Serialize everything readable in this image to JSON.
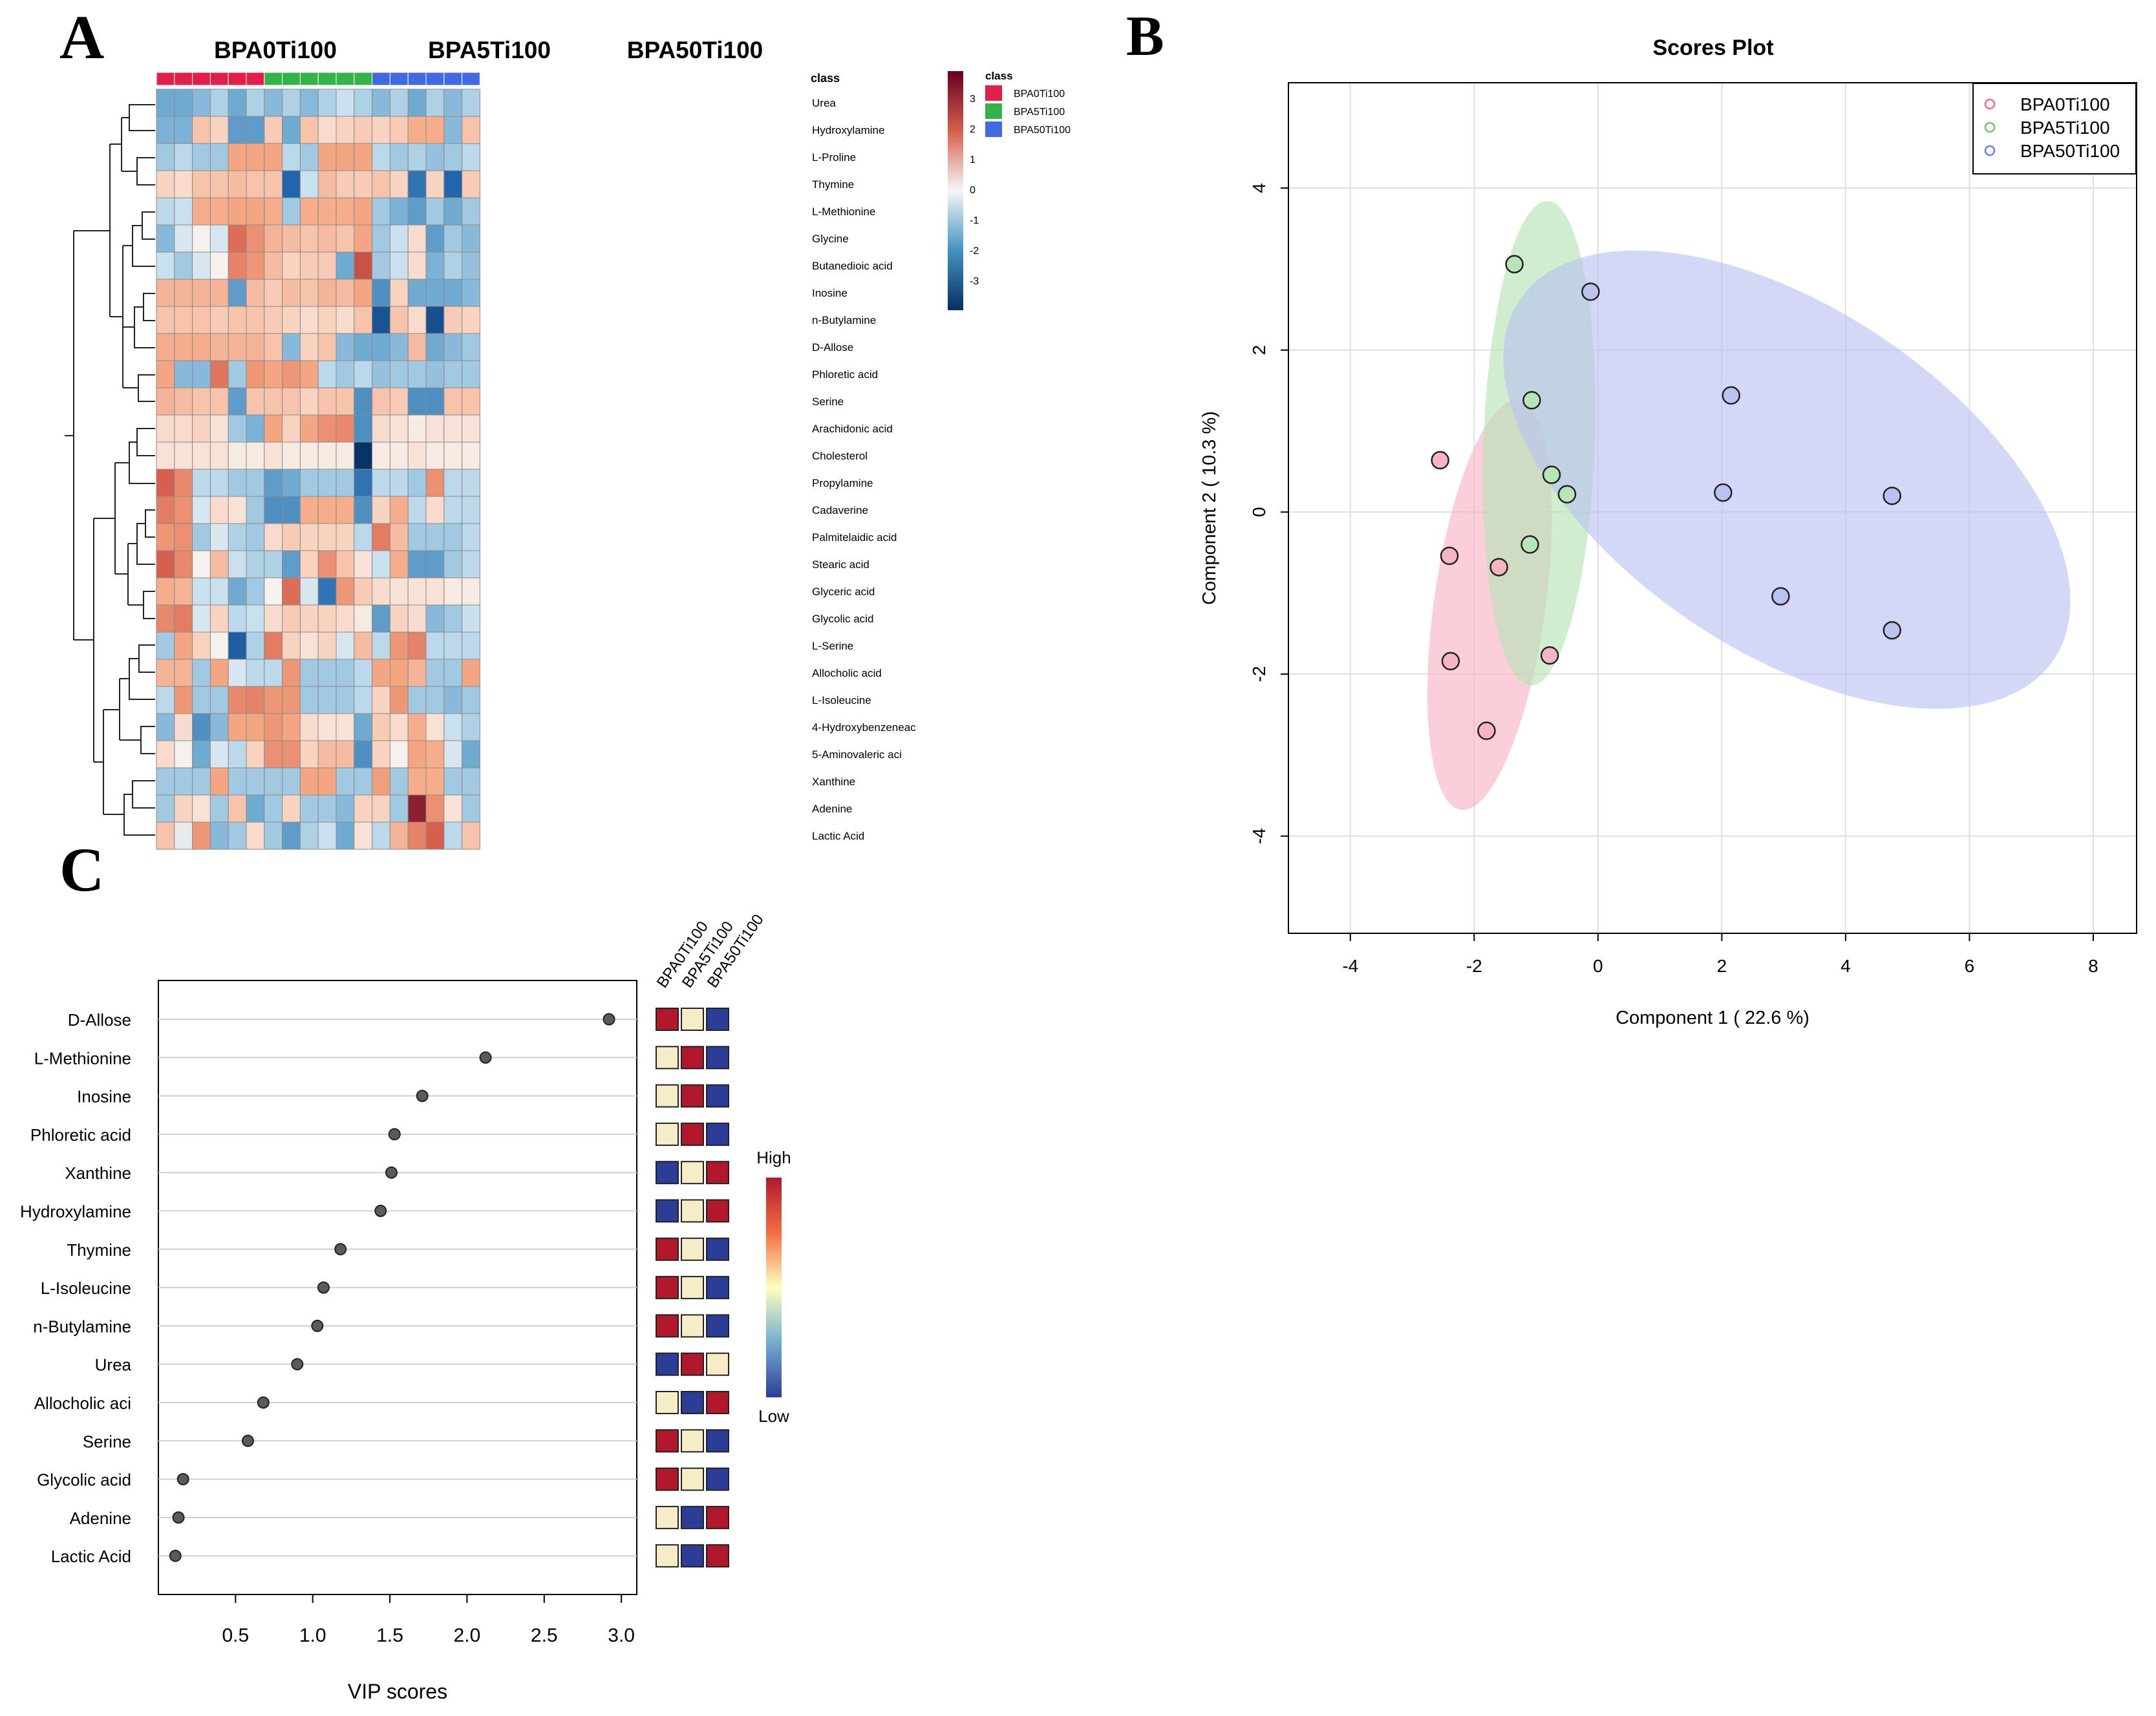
{
  "figure": {
    "panel_labels": {
      "a": "A",
      "b": "B",
      "c": "C"
    }
  },
  "chart_data": [
    {
      "type": "heatmap",
      "panel": "A",
      "group_headers": [
        "BPA0Ti100",
        "BPA5Ti100",
        "BPA50Ti100"
      ],
      "class_bar_label": "class",
      "class_colors": {
        "BPA0Ti100": "#E11F4B",
        "BPA5Ti100": "#35B24A",
        "BPA50Ti100": "#4169E1"
      },
      "column_classes": [
        "BPA0Ti100",
        "BPA0Ti100",
        "BPA0Ti100",
        "BPA0Ti100",
        "BPA0Ti100",
        "BPA0Ti100",
        "BPA5Ti100",
        "BPA5Ti100",
        "BPA5Ti100",
        "BPA5Ti100",
        "BPA5Ti100",
        "BPA5Ti100",
        "BPA50Ti100",
        "BPA50Ti100",
        "BPA50Ti100",
        "BPA50Ti100",
        "BPA50Ti100",
        "BPA50Ti100"
      ],
      "rows": [
        "Urea",
        "Hydroxylamine",
        "L-Proline",
        "Thymine",
        "L-Methionine",
        "Glycine",
        "Butanedioic acid",
        "Inosine",
        "n-Butylamine",
        "D-Allose",
        "Phloretic acid",
        "Serine",
        "Arachidonic acid",
        "Cholesterol",
        "Propylamine",
        "Cadaverine",
        "Palmitelaidic acid",
        "Stearic acid",
        "Glyceric acid",
        "Glycolic acid",
        "L-Serine",
        "Allocholic acid",
        "L-Isoleucine",
        "4-Hydroxybenzeneac",
        "5-Aminovaleric aci",
        "Xanthine",
        "Adenine",
        "Lactic Acid"
      ],
      "values": [
        [
          -1.0,
          -1.0,
          -0.8,
          -0.5,
          -1.0,
          -0.5,
          -0.8,
          -0.5,
          -0.8,
          -0.5,
          -0.3,
          -0.5,
          -0.8,
          -0.5,
          -1.0,
          -0.5,
          -0.8,
          -0.5
        ],
        [
          -0.9,
          -0.9,
          0.6,
          0.4,
          -1.2,
          -1.2,
          0.5,
          -1.0,
          0.6,
          0.3,
          0.4,
          0.5,
          0.4,
          0.5,
          0.9,
          0.9,
          -0.8,
          0.6
        ],
        [
          -0.6,
          -0.4,
          -0.6,
          -0.6,
          1.0,
          1.0,
          1.0,
          -0.4,
          -0.6,
          1.0,
          1.0,
          1.0,
          -0.4,
          -0.6,
          -0.5,
          -0.7,
          -0.6,
          -0.4
        ],
        [
          0.4,
          0.3,
          0.6,
          0.6,
          0.7,
          0.6,
          0.6,
          -2.0,
          -0.3,
          0.7,
          0.5,
          0.5,
          0.6,
          0.4,
          -1.8,
          0.4,
          -2.0,
          0.5
        ],
        [
          -0.4,
          -0.3,
          0.9,
          0.9,
          1.0,
          1.0,
          0.9,
          -0.6,
          0.9,
          0.9,
          0.9,
          1.0,
          -0.6,
          -0.9,
          -1.2,
          -0.6,
          -1.0,
          -0.6
        ],
        [
          -0.8,
          -0.2,
          0.0,
          -0.2,
          1.8,
          1.3,
          0.8,
          0.7,
          0.6,
          0.7,
          0.6,
          1.0,
          -0.6,
          -0.3,
          0.3,
          -1.2,
          -0.6,
          -0.8
        ],
        [
          -0.3,
          -0.6,
          -0.2,
          0.0,
          1.5,
          1.2,
          0.7,
          0.4,
          0.5,
          0.5,
          -1.0,
          2.2,
          -0.6,
          -0.3,
          0.3,
          -0.9,
          -0.5,
          -0.7
        ],
        [
          0.8,
          0.8,
          0.8,
          0.8,
          -1.2,
          0.7,
          0.5,
          0.7,
          0.6,
          0.8,
          0.7,
          1.0,
          -1.4,
          0.4,
          -1.0,
          -1.0,
          -1.0,
          -0.8
        ],
        [
          0.6,
          0.6,
          0.6,
          0.5,
          0.6,
          0.6,
          0.5,
          0.4,
          0.3,
          0.4,
          0.3,
          0.6,
          -2.5,
          0.6,
          0.3,
          -2.6,
          0.5,
          0.4
        ],
        [
          0.9,
          0.9,
          0.9,
          0.8,
          0.8,
          0.8,
          0.6,
          -0.8,
          0.4,
          0.6,
          -0.8,
          -1.0,
          -1.0,
          -0.8,
          0.7,
          -1.0,
          -0.8,
          -0.6
        ],
        [
          1.0,
          -0.8,
          -0.8,
          1.7,
          -0.6,
          1.2,
          1.0,
          1.2,
          1.0,
          -0.4,
          -0.6,
          -0.4,
          -0.7,
          -0.6,
          -0.6,
          -0.7,
          -0.6,
          -0.6
        ],
        [
          0.8,
          0.7,
          0.6,
          0.6,
          -1.2,
          0.6,
          0.6,
          0.6,
          0.4,
          0.6,
          0.6,
          -1.4,
          0.6,
          0.5,
          -1.4,
          -1.4,
          0.6,
          0.6
        ],
        [
          0.3,
          0.3,
          0.4,
          0.2,
          -0.6,
          -0.9,
          1.0,
          0.4,
          1.0,
          1.3,
          1.4,
          -1.4,
          0.3,
          0.2,
          0.1,
          0.2,
          0.2,
          0.2
        ],
        [
          0.2,
          0.2,
          0.2,
          0.2,
          0.1,
          0.1,
          0.2,
          0.1,
          0.1,
          0.1,
          0.1,
          -3.4,
          0.1,
          0.1,
          0.2,
          0.1,
          0.1,
          0.1
        ],
        [
          2.0,
          1.4,
          -0.4,
          -0.4,
          -0.6,
          -0.6,
          -1.2,
          -1.0,
          -0.6,
          -0.6,
          -0.6,
          -1.8,
          -0.4,
          -0.4,
          -0.6,
          1.3,
          -0.4,
          -0.4
        ],
        [
          1.6,
          1.3,
          -0.2,
          0.3,
          0.2,
          -0.6,
          -1.4,
          -1.4,
          0.9,
          0.9,
          0.9,
          -1.4,
          0.4,
          0.9,
          -0.4,
          0.3,
          -0.4,
          -0.4
        ],
        [
          1.2,
          1.3,
          -0.6,
          -0.2,
          -0.5,
          -0.6,
          0.3,
          0.5,
          0.4,
          0.4,
          0.4,
          -0.4,
          1.6,
          0.7,
          -0.6,
          -0.6,
          -0.6,
          -0.4
        ],
        [
          2.0,
          1.4,
          0.0,
          0.7,
          -0.3,
          -0.5,
          -0.5,
          -1.2,
          0.4,
          1.3,
          0.6,
          0.2,
          -0.3,
          0.9,
          -1.2,
          -1.2,
          -0.6,
          -0.4
        ],
        [
          0.9,
          0.8,
          -0.3,
          -0.3,
          -1.0,
          -0.6,
          0.0,
          1.8,
          -0.2,
          -1.8,
          1.2,
          0.5,
          0.3,
          0.2,
          0.2,
          0.2,
          0.1,
          0.1
        ],
        [
          1.4,
          1.6,
          -0.2,
          0.4,
          -0.4,
          -0.3,
          0.3,
          0.5,
          0.4,
          0.4,
          0.3,
          0.1,
          -1.2,
          0.4,
          0.3,
          -0.8,
          -0.6,
          -0.3
        ],
        [
          -0.6,
          1.0,
          0.4,
          0.0,
          -2.2,
          -0.5,
          1.6,
          0.4,
          0.2,
          0.4,
          -0.2,
          0.7,
          -0.4,
          1.2,
          1.5,
          -0.4,
          -0.4,
          -0.4
        ],
        [
          0.8,
          0.8,
          -0.6,
          1.0,
          -0.2,
          -0.4,
          -0.4,
          1.2,
          -0.6,
          -0.6,
          -0.6,
          -0.4,
          1.0,
          1.0,
          0.8,
          -0.6,
          -0.6,
          1.0
        ],
        [
          -0.4,
          1.2,
          -0.6,
          -0.6,
          1.4,
          1.5,
          1.2,
          1.2,
          -0.6,
          -0.6,
          -0.6,
          -0.4,
          0.4,
          1.2,
          -0.6,
          -0.6,
          -0.8,
          -0.6
        ],
        [
          -0.8,
          0.3,
          -1.4,
          -0.8,
          1.0,
          1.0,
          1.2,
          1.0,
          0.3,
          0.2,
          0.2,
          -1.0,
          0.5,
          0.3,
          0.9,
          0.2,
          -0.3,
          -0.5
        ],
        [
          0.3,
          0.0,
          -1.0,
          -0.2,
          -0.4,
          0.4,
          1.3,
          1.3,
          0.4,
          0.7,
          0.7,
          -1.4,
          0.4,
          0.0,
          1.0,
          0.9,
          -0.2,
          -1.0
        ],
        [
          -0.6,
          -0.6,
          -0.6,
          1.0,
          -0.6,
          -0.6,
          -0.6,
          -0.6,
          1.0,
          1.0,
          -0.6,
          -0.6,
          1.1,
          -0.6,
          0.9,
          0.9,
          -0.6,
          -0.6
        ],
        [
          -0.6,
          0.4,
          0.2,
          -0.6,
          0.6,
          -1.0,
          -0.6,
          0.4,
          -0.6,
          -0.6,
          -0.8,
          0.4,
          0.4,
          -0.6,
          3.0,
          1.3,
          0.2,
          -0.6
        ],
        [
          0.6,
          -0.1,
          1.2,
          -0.8,
          -0.6,
          0.3,
          -0.6,
          -1.2,
          -0.5,
          -0.3,
          -1.0,
          0.2,
          -0.4,
          0.8,
          1.5,
          2.0,
          -0.4,
          0.6
        ]
      ],
      "legend": {
        "ticks": [
          "3",
          "2",
          "1",
          "0",
          "-1",
          "-2",
          "-3"
        ],
        "class_title": "class",
        "entries": [
          "BPA0Ti100",
          "BPA5Ti100",
          "BPA50Ti100"
        ]
      }
    },
    {
      "type": "scatter",
      "panel": "B",
      "title": "Scores Plot",
      "xlabel": "Component 1 ( 22.6 %)",
      "ylabel": "Component 2 ( 10.3 %)",
      "xlim": [
        -5,
        8.7
      ],
      "ylim": [
        -5.2,
        5.3
      ],
      "xticks": [
        -4,
        -2,
        0,
        2,
        4,
        6,
        8
      ],
      "yticks": [
        -4,
        -2,
        0,
        2,
        4
      ],
      "xtick_labels": [
        "-4",
        "-2",
        "0",
        "2",
        "4",
        "6",
        "8"
      ],
      "ytick_labels": [
        "-4",
        "-2",
        "0",
        "2",
        "4"
      ],
      "legend_position": "top-right",
      "series": [
        {
          "name": "BPA0Ti100",
          "color": "#F06A85",
          "fill": "#F7B5C4",
          "x": [
            -2.55,
            -2.4,
            -1.6,
            -2.38,
            -0.78,
            -1.8
          ],
          "y": [
            0.64,
            -0.54,
            -0.68,
            -1.84,
            -1.77,
            -2.7
          ],
          "ellipse": {
            "center": [
              -1.75,
              -1.15
            ],
            "semi_axes": [
              0.9,
              2.9
            ],
            "rotation_deg": 82
          }
        },
        {
          "name": "BPA5Ti100",
          "color": "#6BC86B",
          "fill": "#B9E4B7",
          "x": [
            -1.35,
            -1.07,
            -0.75,
            -0.5,
            -1.1
          ],
          "y": [
            3.06,
            1.38,
            0.46,
            0.22,
            -0.4
          ],
          "ellipse": {
            "center": [
              -0.95,
              0.85
            ],
            "semi_axes": [
              0.9,
              3.4
            ],
            "rotation_deg": 88
          }
        },
        {
          "name": "BPA50Ti100",
          "color": "#6B7FE0",
          "fill": "#BAC3EF",
          "x": [
            -0.12,
            2.15,
            2.02,
            4.75,
            2.95,
            4.75
          ],
          "y": [
            2.72,
            1.44,
            0.24,
            0.2,
            -1.04,
            -1.46
          ],
          "ellipse": {
            "center": [
              3.05,
              0.4
            ],
            "semi_axes": [
              5.2,
              2.4
            ],
            "rotation_deg": -34
          }
        }
      ]
    },
    {
      "type": "dot",
      "panel": "C",
      "xlabel": "VIP scores",
      "xlim": [
        0,
        3.1
      ],
      "xticks": [
        0.5,
        1.0,
        1.5,
        2.0,
        2.5,
        3.0
      ],
      "xtick_labels": [
        "0.5",
        "1.0",
        "1.5",
        "2.0",
        "2.5",
        "3.0"
      ],
      "categories": [
        "D-Allose",
        "L-Methionine",
        "Inosine",
        "Phloretic acid",
        "Xanthine",
        "Hydroxylamine",
        "Thymine",
        "L-Isoleucine",
        "n-Butylamine",
        "Urea",
        "Allocholic aci",
        "Serine",
        "Glycolic acid",
        "Adenine",
        "Lactic Acid"
      ],
      "values": [
        2.92,
        2.12,
        1.71,
        1.53,
        1.51,
        1.44,
        1.18,
        1.07,
        1.03,
        0.9,
        0.68,
        0.58,
        0.16,
        0.13,
        0.11
      ],
      "group_columns": [
        "BPA0Ti100",
        "BPA5Ti100",
        "BPA50Ti100"
      ],
      "levels": [
        [
          "high",
          "mid",
          "low"
        ],
        [
          "mid",
          "high",
          "low"
        ],
        [
          "mid",
          "high",
          "low"
        ],
        [
          "mid",
          "high",
          "low"
        ],
        [
          "low",
          "mid",
          "high"
        ],
        [
          "low",
          "mid",
          "high"
        ],
        [
          "high",
          "mid",
          "low"
        ],
        [
          "high",
          "mid",
          "low"
        ],
        [
          "high",
          "mid",
          "low"
        ],
        [
          "low",
          "high",
          "mid"
        ],
        [
          "mid",
          "low",
          "high"
        ],
        [
          "high",
          "mid",
          "low"
        ],
        [
          "high",
          "mid",
          "low"
        ],
        [
          "mid",
          "low",
          "high"
        ],
        [
          "mid",
          "low",
          "high"
        ]
      ],
      "level_colors": {
        "high": "#B2182B",
        "mid": "#F6EDC6",
        "low": "#2C3D98"
      },
      "colorbar": {
        "high_label": "High",
        "low_label": "Low"
      }
    }
  ]
}
